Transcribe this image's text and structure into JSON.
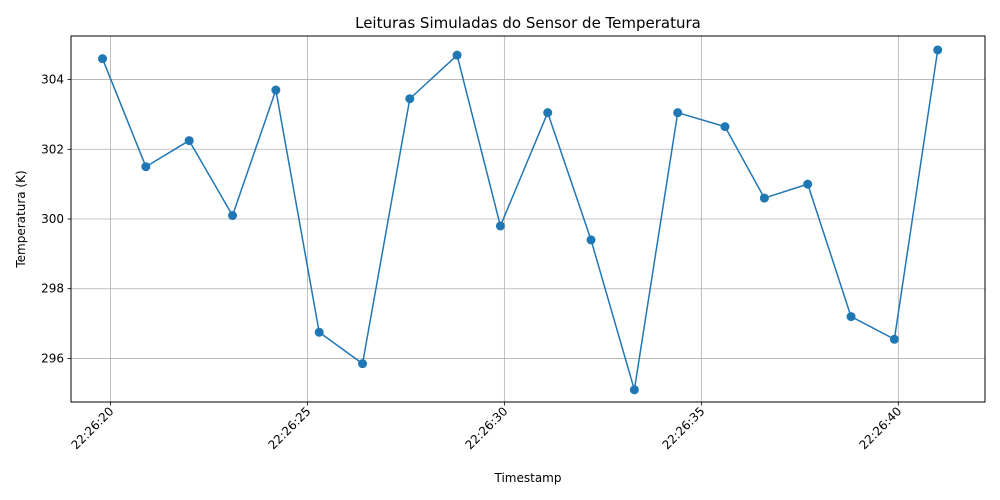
{
  "chart_data": {
    "type": "line",
    "title": "Leituras Simuladas do Sensor de Temperatura",
    "xlabel": "Timestamp",
    "ylabel": "Temperatura (K)",
    "x_ticks": [
      "22:26:20",
      "22:26:25",
      "22:26:30",
      "22:26:35",
      "22:26:40"
    ],
    "y_ticks": [
      296,
      298,
      300,
      302,
      304
    ],
    "xlim": [
      "22:26:19.0",
      "22:26:42.2"
    ],
    "ylim": [
      294.75,
      305.25
    ],
    "grid": true,
    "line_color": "#1f77b4",
    "marker": "circle",
    "series": [
      {
        "x": [
          "22:26:19.8",
          "22:26:20.9",
          "22:26:22.0",
          "22:26:23.1",
          "22:26:24.2",
          "22:26:25.3",
          "22:26:26.4",
          "22:26:27.6",
          "22:26:28.8",
          "22:26:29.9",
          "22:26:31.1",
          "22:26:32.2",
          "22:26:33.3",
          "22:26:34.4",
          "22:26:35.6",
          "22:26:36.6",
          "22:26:37.7",
          "22:26:38.8",
          "22:26:39.9",
          "22:26:41.0"
        ],
        "values": [
          304.6,
          301.5,
          302.25,
          300.1,
          303.7,
          296.75,
          295.85,
          303.45,
          304.7,
          299.8,
          303.05,
          299.4,
          295.1,
          303.05,
          302.65,
          300.6,
          301.0,
          297.2,
          296.55,
          304.85
        ]
      }
    ]
  }
}
